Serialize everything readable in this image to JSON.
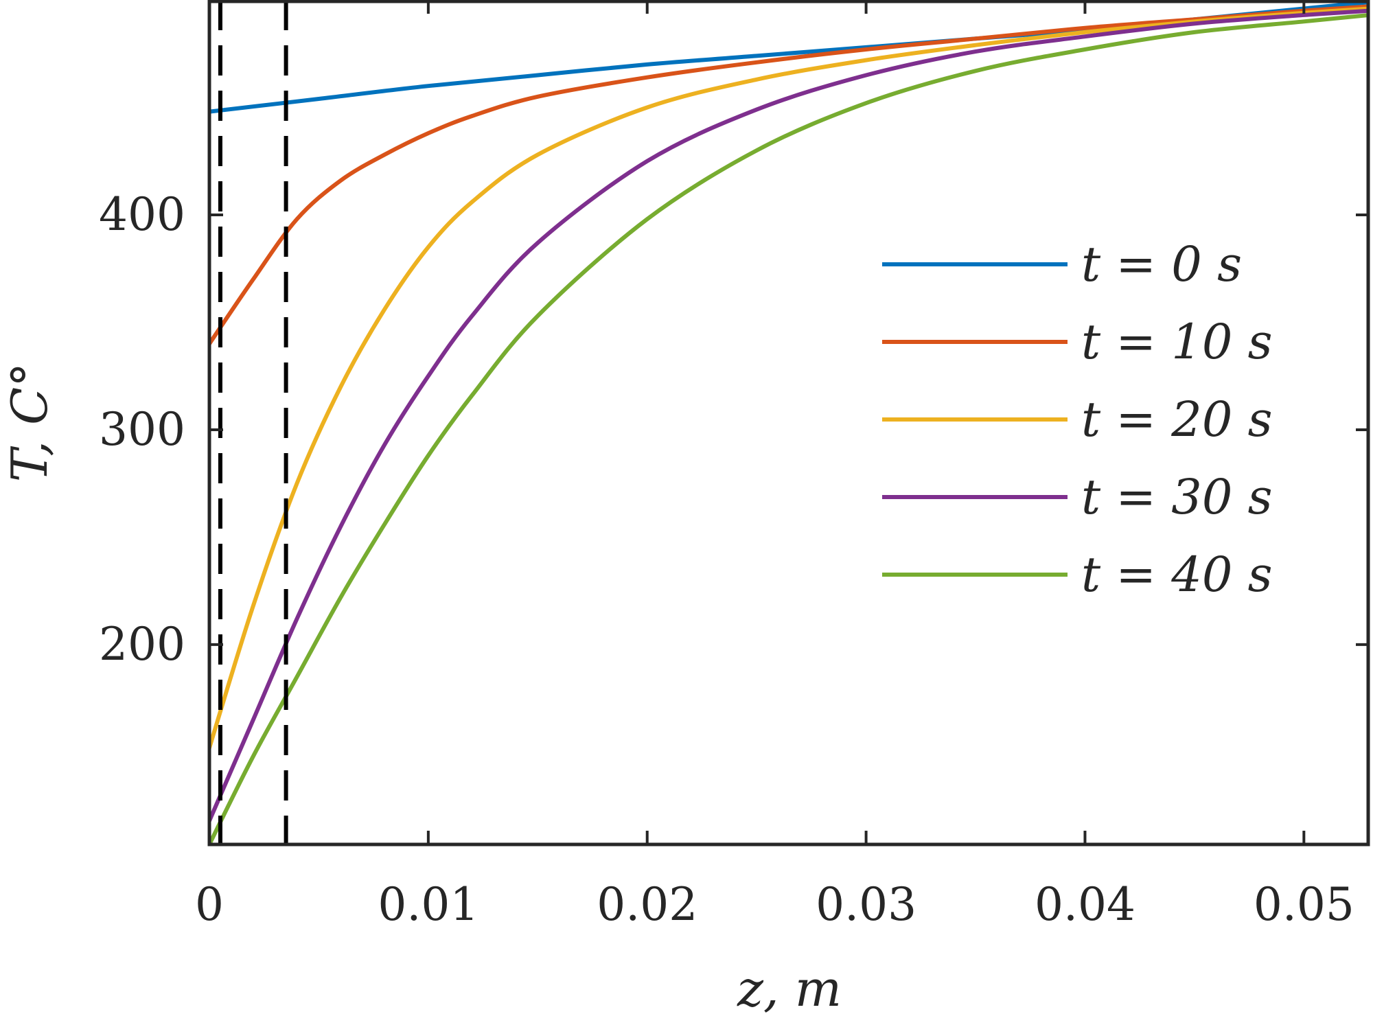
{
  "chart_data": {
    "type": "line",
    "xlabel": "z, m",
    "ylabel": "T, C°",
    "xlim": [
      0,
      0.053
    ],
    "ylim": [
      107,
      500
    ],
    "x_ticks": [
      "0",
      "0.01",
      "0.02",
      "0.03",
      "0.04",
      "0.05"
    ],
    "x_tick_values": [
      0,
      0.01,
      0.02,
      0.03,
      0.04,
      0.05
    ],
    "y_ticks": [
      "200",
      "300",
      "400"
    ],
    "y_tick_values": [
      200,
      300,
      400
    ],
    "grid": false,
    "legend_position": "right",
    "reference_lines": [
      {
        "axis": "x",
        "value": 0.0005,
        "style": "dashed"
      },
      {
        "axis": "x",
        "value": 0.0035,
        "style": "dashed"
      }
    ],
    "series": [
      {
        "name": "t = 0 s",
        "color": "#0072BD",
        "x": [
          0,
          0.005,
          0.01,
          0.015,
          0.02,
          0.025,
          0.03,
          0.035,
          0.04,
          0.045,
          0.05,
          0.053
        ],
        "y": [
          448,
          454,
          460,
          465,
          470,
          474,
          478,
          482,
          486,
          491,
          496,
          499
        ]
      },
      {
        "name": "t = 10 s",
        "color": "#D95319",
        "x": [
          0,
          0.002,
          0.004,
          0.006,
          0.008,
          0.01,
          0.012,
          0.015,
          0.02,
          0.025,
          0.03,
          0.035,
          0.04,
          0.045,
          0.05,
          0.053
        ],
        "y": [
          340,
          370,
          398,
          416,
          428,
          438,
          446,
          455,
          464,
          471,
          477,
          482,
          487,
          491,
          495,
          497
        ]
      },
      {
        "name": "t = 20 s",
        "color": "#EDB120",
        "x": [
          0,
          0.002,
          0.004,
          0.006,
          0.008,
          0.01,
          0.012,
          0.015,
          0.02,
          0.025,
          0.03,
          0.035,
          0.04,
          0.045,
          0.05,
          0.053
        ],
        "y": [
          152,
          218,
          275,
          320,
          356,
          385,
          406,
          428,
          450,
          463,
          472,
          479,
          485,
          490,
          494,
          496
        ]
      },
      {
        "name": "t = 30 s",
        "color": "#7E2F8E",
        "x": [
          0,
          0.002,
          0.004,
          0.006,
          0.008,
          0.01,
          0.012,
          0.015,
          0.02,
          0.025,
          0.03,
          0.035,
          0.04,
          0.045,
          0.05,
          0.053
        ],
        "y": [
          118,
          165,
          212,
          255,
          293,
          325,
          353,
          387,
          425,
          449,
          465,
          476,
          483,
          489,
          493,
          495
        ]
      },
      {
        "name": "t = 40 s",
        "color": "#77AC30",
        "x": [
          0,
          0.002,
          0.004,
          0.006,
          0.008,
          0.01,
          0.012,
          0.015,
          0.02,
          0.025,
          0.03,
          0.035,
          0.04,
          0.045,
          0.05,
          0.053
        ],
        "y": [
          107,
          148,
          185,
          222,
          256,
          288,
          316,
          353,
          398,
          430,
          452,
          467,
          477,
          485,
          490,
          493
        ]
      }
    ]
  }
}
